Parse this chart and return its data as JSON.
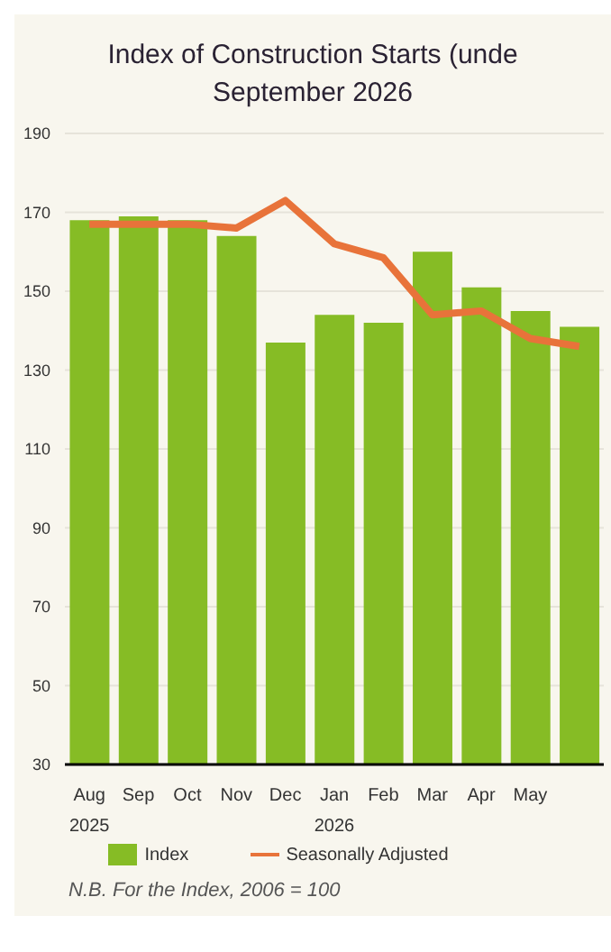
{
  "chart_data": {
    "type": "bar",
    "title": "Index of Construction Starts (unde\nSeptember 2026",
    "categories": [
      "Aug\n2025",
      "Sep",
      "Oct",
      "Nov",
      "Dec",
      "Jan\n2026",
      "Feb",
      "Mar",
      "Apr",
      "May",
      null
    ],
    "series": [
      {
        "name": "Index",
        "color": "#86bc25",
        "values": [
          168,
          169,
          168,
          164,
          137,
          144,
          142,
          160,
          151,
          145,
          141
        ]
      },
      {
        "name": "Seasonally Adjusted",
        "type": "line",
        "color": "#e8733a",
        "values": [
          167,
          167,
          167,
          166,
          173,
          162,
          158.5,
          144,
          145,
          138,
          136
        ]
      }
    ],
    "ylim": [
      30,
      190
    ],
    "yticks": [
      30,
      50,
      70,
      90,
      110,
      130,
      150,
      170,
      190
    ],
    "grid": "y",
    "legend": "bottom",
    "marker": "none",
    "annotations": [
      "N.B. For the Index, 2006 = 100"
    ]
  }
}
